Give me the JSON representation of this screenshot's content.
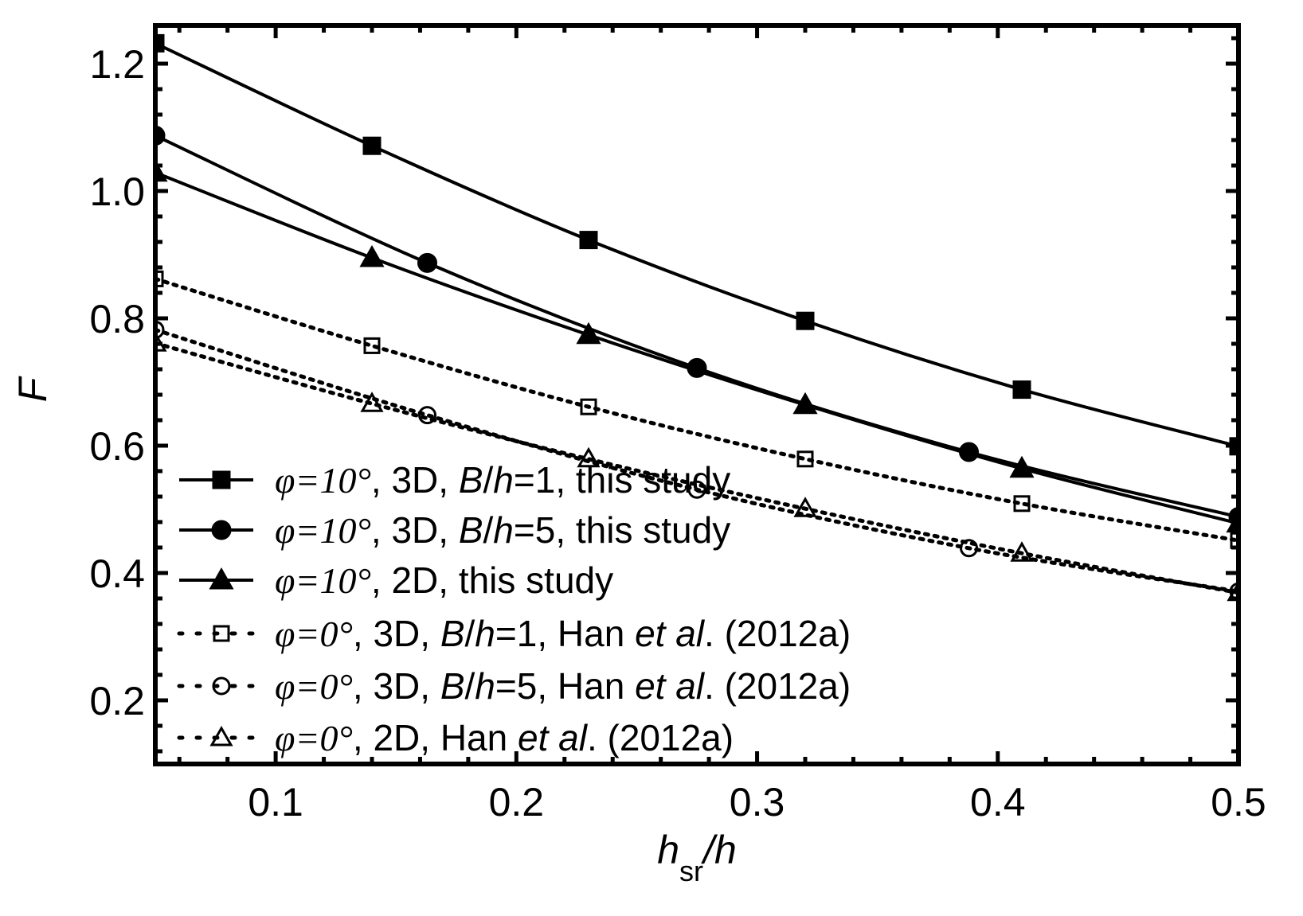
{
  "chart_data": {
    "type": "line",
    "xlabel": {
      "main": "h",
      "sub": "sr",
      "rest": "/h"
    },
    "ylabel": "F",
    "xlim": [
      0.05,
      0.5
    ],
    "ylim": [
      0.1,
      1.26
    ],
    "xticks": [
      "0.1",
      "0.2",
      "0.3",
      "0.4",
      "0.5"
    ],
    "xtick_values": [
      0.1,
      0.2,
      0.3,
      0.4,
      0.5
    ],
    "yticks": [
      "0.2",
      "0.4",
      "0.6",
      "0.8",
      "1.0",
      "1.2"
    ],
    "ytick_values": [
      0.2,
      0.4,
      0.6,
      0.8,
      1.0,
      1.2
    ],
    "grid": false,
    "legend_position": "bottom-left",
    "series": [
      {
        "name": "φ=10°, 3D, B/h=1, this study",
        "marker": "square-filled",
        "dash": "solid",
        "legend": [
          [
            "φ=10°",
            "serif"
          ],
          [
            ", 3D, ",
            ""
          ],
          [
            "B",
            "i"
          ],
          [
            "/",
            ""
          ],
          [
            "h",
            "i"
          ],
          [
            "=1, this study",
            ""
          ]
        ],
        "x": [
          0.05,
          0.14,
          0.23,
          0.32,
          0.41,
          0.5
        ],
        "y": [
          1.232,
          1.071,
          0.923,
          0.796,
          0.688,
          0.599
        ]
      },
      {
        "name": "φ=10°, 3D, B/h=5, this study",
        "marker": "circle-filled",
        "dash": "solid",
        "legend": [
          [
            "φ=10°",
            "serif"
          ],
          [
            ", 3D, ",
            ""
          ],
          [
            "B",
            "i"
          ],
          [
            "/",
            ""
          ],
          [
            "h",
            "i"
          ],
          [
            "=5, this study",
            ""
          ]
        ],
        "x": [
          0.05,
          0.163,
          0.275,
          0.388,
          0.5
        ],
        "y": [
          1.087,
          0.887,
          0.722,
          0.59,
          0.488
        ]
      },
      {
        "name": "φ=10°, 2D, this study",
        "marker": "triangle-filled",
        "dash": "solid",
        "legend": [
          [
            "φ=10°",
            "serif"
          ],
          [
            ", 2D, this study",
            ""
          ]
        ],
        "x": [
          0.05,
          0.14,
          0.23,
          0.32,
          0.41,
          0.5
        ],
        "y": [
          1.029,
          0.895,
          0.774,
          0.664,
          0.564,
          0.478
        ]
      },
      {
        "name": "φ=0°, 3D, B/h=1, Han et al. (2012a)",
        "marker": "square-open",
        "dash": "dot",
        "legend": [
          [
            "φ=0°",
            "serif"
          ],
          [
            ",  3D, ",
            ""
          ],
          [
            "B",
            "i"
          ],
          [
            "/",
            ""
          ],
          [
            "h",
            "i"
          ],
          [
            "=1, Han ",
            ""
          ],
          [
            "et al",
            "i"
          ],
          [
            ". (2012a)",
            ""
          ]
        ],
        "x": [
          0.05,
          0.14,
          0.23,
          0.32,
          0.41,
          0.5
        ],
        "y": [
          0.862,
          0.757,
          0.661,
          0.579,
          0.509,
          0.451
        ]
      },
      {
        "name": "φ=0°, 3D, B/h=5, Han et al. (2012a)",
        "marker": "circle-open",
        "dash": "dot",
        "legend": [
          [
            "φ=0°",
            "serif"
          ],
          [
            ",  3D, ",
            ""
          ],
          [
            "B",
            "i"
          ],
          [
            "/",
            ""
          ],
          [
            "h",
            "i"
          ],
          [
            "=5, Han ",
            ""
          ],
          [
            "et al",
            "i"
          ],
          [
            ". (2012a)",
            ""
          ]
        ],
        "x": [
          0.05,
          0.163,
          0.275,
          0.388,
          0.5
        ],
        "y": [
          0.782,
          0.648,
          0.531,
          0.439,
          0.371
        ]
      },
      {
        "name": "φ=0°, 2D, Han et al. (2012a)",
        "marker": "triangle-open",
        "dash": "dot",
        "legend": [
          [
            "φ=0°",
            "serif"
          ],
          [
            ", 2D, Han ",
            ""
          ],
          [
            "et al",
            "i"
          ],
          [
            ". (2012a)",
            ""
          ]
        ],
        "x": [
          0.05,
          0.14,
          0.23,
          0.32,
          0.41,
          0.5
        ],
        "y": [
          0.761,
          0.666,
          0.579,
          0.501,
          0.431,
          0.369
        ]
      }
    ]
  }
}
